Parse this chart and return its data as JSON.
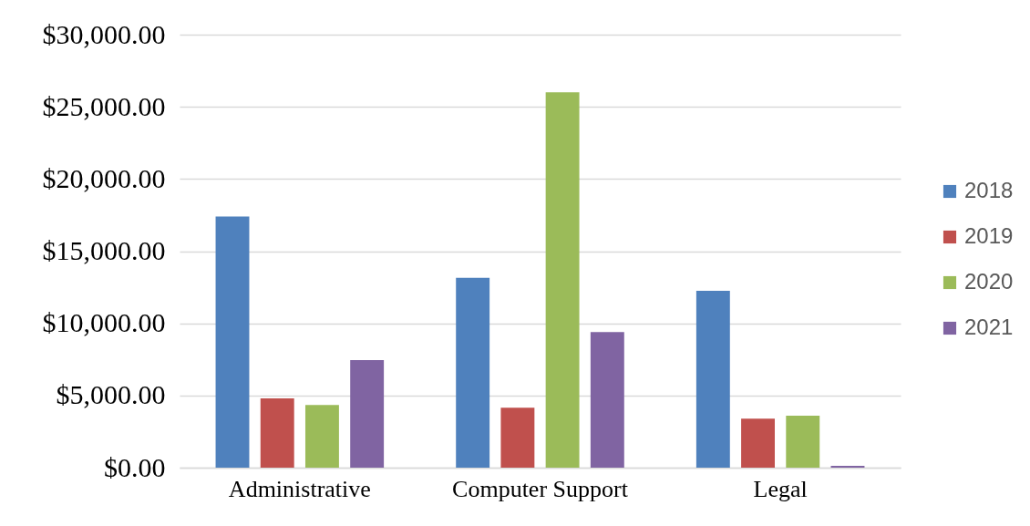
{
  "chart_data": {
    "type": "bar",
    "categories": [
      "Administrative",
      "Computer Support",
      "Legal"
    ],
    "series": [
      {
        "name": "2018",
        "color": "#4f81bd",
        "values": [
          17400,
          13150,
          12250
        ]
      },
      {
        "name": "2019",
        "color": "#c0504d",
        "values": [
          4800,
          4150,
          3400
        ]
      },
      {
        "name": "2020",
        "color": "#9bbb59",
        "values": [
          4350,
          26000,
          3600
        ]
      },
      {
        "name": "2021",
        "color": "#8064a2",
        "values": [
          7450,
          9400,
          130
        ]
      }
    ],
    "ylim": [
      0,
      30000
    ],
    "yticks": [
      {
        "value": 0,
        "label": "$0.00"
      },
      {
        "value": 5000,
        "label": "$5,000.00"
      },
      {
        "value": 10000,
        "label": "$10,000.00"
      },
      {
        "value": 15000,
        "label": "$15,000.00"
      },
      {
        "value": 20000,
        "label": "$20,000.00"
      },
      {
        "value": 25000,
        "label": "$25,000.00"
      },
      {
        "value": 30000,
        "label": "$30,000.00"
      }
    ],
    "grid": "y",
    "legend": "right"
  }
}
